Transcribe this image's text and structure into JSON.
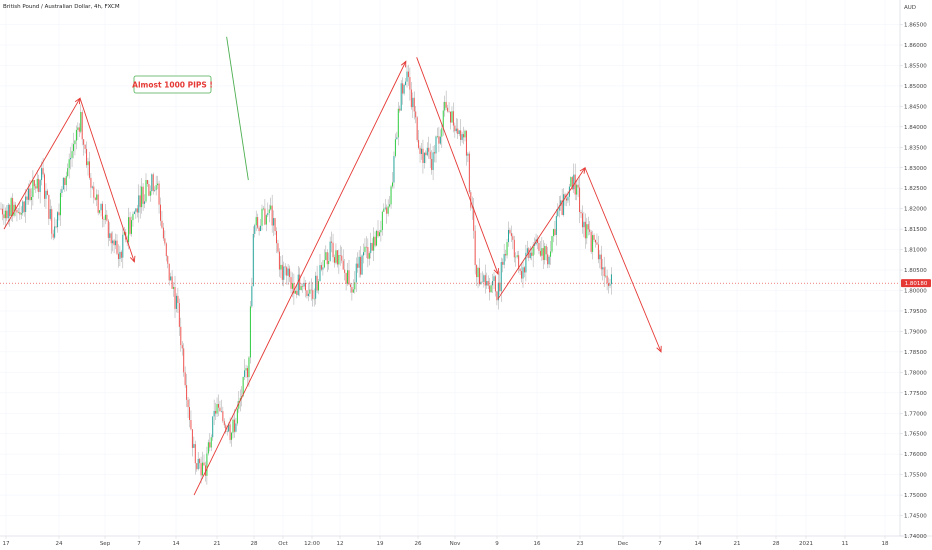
{
  "header": {
    "symbol_title": "British Pound / Australian Dollar, 4h, FXCM",
    "currency": "AUD"
  },
  "colors": {
    "bull": "#26a69a",
    "bull_bright": "#2ecc40",
    "bear": "#ef5350",
    "wick": "#999999",
    "trendline": "#e53935",
    "callout_border": "#4caf50",
    "price_line": "#e53935",
    "price_label_bg": "#e53935",
    "grid": "#f0f3fa",
    "axis_line": "#d1d4dc",
    "axis_text": "#444444"
  },
  "callout": {
    "text": "Almost  1000 PIPS !"
  },
  "current_price": {
    "value": 1.8018,
    "label": "1.80180"
  },
  "chart_data": {
    "type": "candlestick",
    "title": "British Pound / Australian Dollar, 4h, FXCM",
    "ylabel": "AUD",
    "ylim": [
      1.74,
      1.871
    ],
    "y_ticks": [
      "1.74000",
      "1.74500",
      "1.75000",
      "1.75500",
      "1.76000",
      "1.76500",
      "1.77000",
      "1.77500",
      "1.78000",
      "1.78500",
      "1.79000",
      "1.79500",
      "1.80000",
      "1.80500",
      "1.81000",
      "1.81500",
      "1.82000",
      "1.82500",
      "1.83000",
      "1.83500",
      "1.84000",
      "1.84500",
      "1.85000",
      "1.85500",
      "1.86000",
      "1.86500"
    ],
    "x_ticks": [
      "17",
      "24",
      "Sep",
      "7",
      "14",
      "21",
      "28",
      "Oct",
      "12:00",
      "12",
      "19",
      "26",
      "Nov",
      "9",
      "16",
      "23",
      "Dec",
      "7",
      "14",
      "21",
      "28",
      "2021",
      "11",
      "18"
    ],
    "price_path": [
      {
        "date": "Aug 13",
        "price": 1.82
      },
      {
        "date": "Aug 17",
        "price": 1.828
      },
      {
        "date": "Aug 19",
        "price": 1.815
      },
      {
        "date": "Aug 24",
        "price": 1.842
      },
      {
        "date": "Aug 26",
        "price": 1.826
      },
      {
        "date": "Aug 31",
        "price": 1.808
      },
      {
        "date": "Sep 4",
        "price": 1.823
      },
      {
        "date": "Sep 7",
        "price": 1.827
      },
      {
        "date": "Sep 9",
        "price": 1.806
      },
      {
        "date": "Sep 11",
        "price": 1.795
      },
      {
        "date": "Sep 14",
        "price": 1.76
      },
      {
        "date": "Sep 16",
        "price": 1.756
      },
      {
        "date": "Sep 18",
        "price": 1.771
      },
      {
        "date": "Sep 21",
        "price": 1.765
      },
      {
        "date": "Sep 23",
        "price": 1.776
      },
      {
        "date": "Sep 24",
        "price": 1.782
      },
      {
        "date": "Sep 25",
        "price": 1.815
      },
      {
        "date": "Sep 28",
        "price": 1.82
      },
      {
        "date": "Sep 30",
        "price": 1.805
      },
      {
        "date": "Oct 2",
        "price": 1.802
      },
      {
        "date": "Oct 6",
        "price": 1.8
      },
      {
        "date": "Oct 9",
        "price": 1.81
      },
      {
        "date": "Oct 13",
        "price": 1.802
      },
      {
        "date": "Oct 16",
        "price": 1.81
      },
      {
        "date": "Oct 20",
        "price": 1.82
      },
      {
        "date": "Oct 22",
        "price": 1.848
      },
      {
        "date": "Oct 23",
        "price": 1.853
      },
      {
        "date": "Oct 26",
        "price": 1.833
      },
      {
        "date": "Oct 28",
        "price": 1.832
      },
      {
        "date": "Oct 30",
        "price": 1.844
      },
      {
        "date": "Nov 3",
        "price": 1.838
      },
      {
        "date": "Nov 5",
        "price": 1.805
      },
      {
        "date": "Nov 9",
        "price": 1.8
      },
      {
        "date": "Nov 11",
        "price": 1.816
      },
      {
        "date": "Nov 13",
        "price": 1.804
      },
      {
        "date": "Nov 16",
        "price": 1.812
      },
      {
        "date": "Nov 18",
        "price": 1.808
      },
      {
        "date": "Nov 20",
        "price": 1.819
      },
      {
        "date": "Nov 23",
        "price": 1.827
      },
      {
        "date": "Nov 25",
        "price": 1.815
      },
      {
        "date": "Nov 27",
        "price": 1.81
      },
      {
        "date": "Nov 30",
        "price": 1.8018
      }
    ],
    "trendlines": [
      {
        "from": {
          "date": "Aug 10",
          "price": 1.815
        },
        "to": {
          "date": "Aug 24",
          "price": 1.847
        }
      },
      {
        "from": {
          "date": "Aug 24",
          "price": 1.847
        },
        "to": {
          "date": "Sep 3",
          "price": 1.807
        }
      },
      {
        "from": {
          "date": "Sep 14",
          "price": 1.75
        },
        "to": {
          "date": "Oct 23",
          "price": 1.856
        }
      },
      {
        "from": {
          "date": "Oct 25",
          "price": 1.857
        },
        "to": {
          "date": "Nov 9",
          "price": 1.804
        }
      },
      {
        "from": {
          "date": "Nov 9",
          "price": 1.798
        },
        "to": {
          "date": "Nov 25",
          "price": 1.83
        }
      },
      {
        "from": {
          "date": "Nov 25",
          "price": 1.83
        },
        "to": {
          "date": "Dec 9",
          "price": 1.785
        }
      },
      {
        "from": {
          "date": "Sep 20",
          "price": 1.862
        },
        "to": {
          "date": "Sep 24",
          "price": 1.827
        },
        "color": "callout"
      }
    ]
  }
}
